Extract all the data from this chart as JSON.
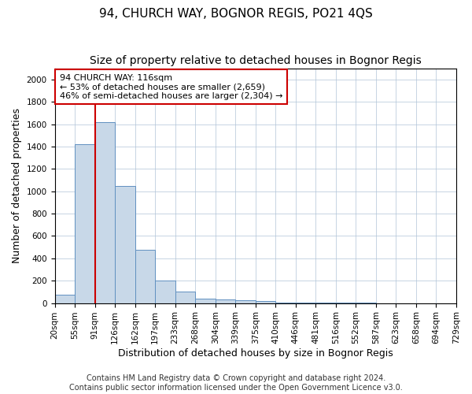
{
  "title": "94, CHURCH WAY, BOGNOR REGIS, PO21 4QS",
  "subtitle": "Size of property relative to detached houses in Bognor Regis",
  "xlabel": "Distribution of detached houses by size in Bognor Regis",
  "ylabel": "Number of detached properties",
  "footer_line1": "Contains HM Land Registry data © Crown copyright and database right 2024.",
  "footer_line2": "Contains public sector information licensed under the Open Government Licence v3.0.",
  "bin_labels": [
    "20sqm",
    "55sqm",
    "91sqm",
    "126sqm",
    "162sqm",
    "197sqm",
    "233sqm",
    "268sqm",
    "304sqm",
    "339sqm",
    "375sqm",
    "410sqm",
    "446sqm",
    "481sqm",
    "516sqm",
    "552sqm",
    "587sqm",
    "623sqm",
    "658sqm",
    "694sqm",
    "729sqm"
  ],
  "bar_heights": [
    75,
    1420,
    1620,
    1050,
    475,
    200,
    100,
    40,
    30,
    25,
    15,
    5,
    3,
    2,
    1,
    1,
    0,
    0,
    0,
    0
  ],
  "bar_color": "#c8d8e8",
  "bar_edge_color": "#6090c0",
  "vline_x": 2.0,
  "vline_color": "#cc0000",
  "annotation_text": "94 CHURCH WAY: 116sqm\n← 53% of detached houses are smaller (2,659)\n46% of semi-detached houses are larger (2,304) →",
  "annotation_box_color": "white",
  "annotation_box_edge": "#cc0000",
  "ylim": [
    0,
    2100
  ],
  "yticks": [
    0,
    200,
    400,
    600,
    800,
    1000,
    1200,
    1400,
    1600,
    1800,
    2000
  ],
  "title_fontsize": 11,
  "subtitle_fontsize": 10,
  "xlabel_fontsize": 9,
  "ylabel_fontsize": 9,
  "tick_fontsize": 7.5,
  "annotation_fontsize": 8,
  "footer_fontsize": 7
}
